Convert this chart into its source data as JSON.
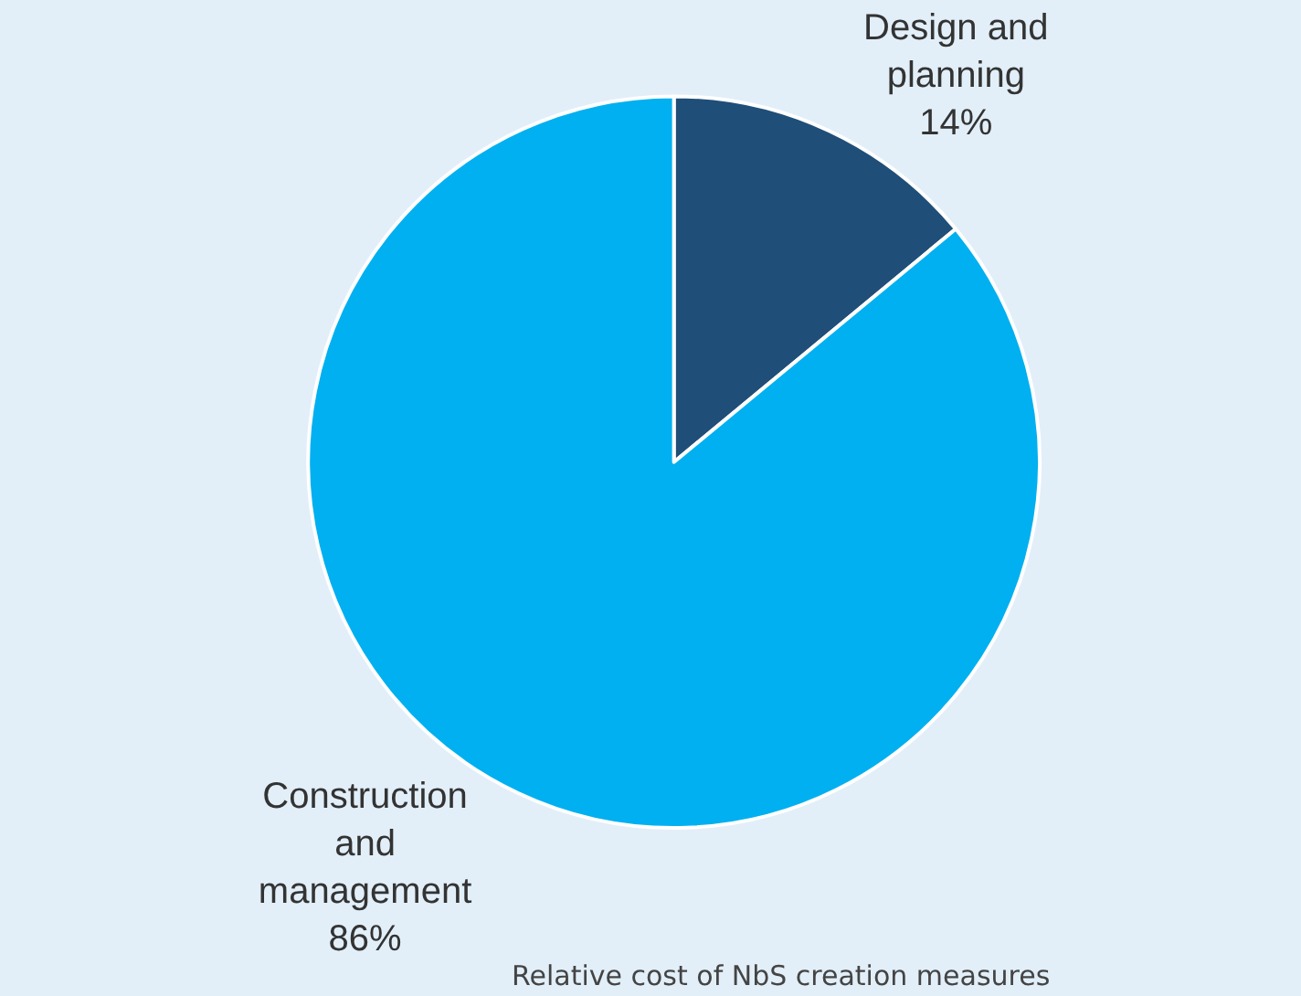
{
  "chart_data": {
    "type": "pie",
    "categories": [
      "Design and planning",
      "Construction and management"
    ],
    "values": [
      14,
      86
    ],
    "value_labels": [
      "14%",
      "86%"
    ],
    "colors": [
      "#1f4e79",
      "#00b0f0"
    ],
    "legend": false,
    "annotations": [
      "Relative cost of NbS creation measures"
    ]
  }
}
